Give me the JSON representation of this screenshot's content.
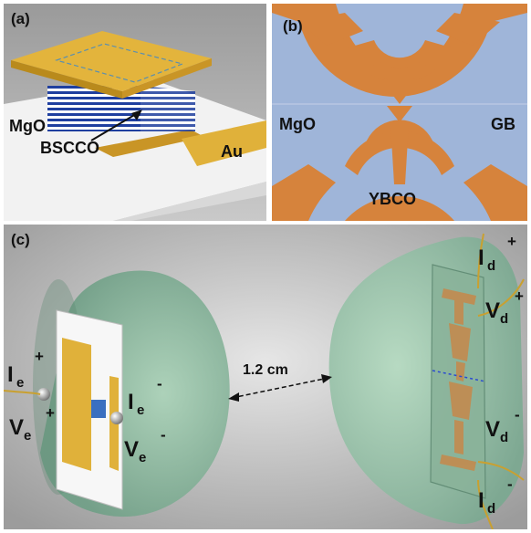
{
  "panel_a": {
    "tag": "(a)",
    "label_substrate": "MgO",
    "label_stack": "BSCCO",
    "label_electrode": "Au"
  },
  "panel_b": {
    "tag": "(b)",
    "label_substrate": "MgO",
    "label_boundary": "GB",
    "label_film": "YBCO"
  },
  "panel_c": {
    "tag": "(c)",
    "distance": "1.2 cm",
    "left_terminals": {
      "ie_plus": {
        "sym": "I",
        "sub": "e",
        "sup": "+"
      },
      "ve_plus": {
        "sym": "V",
        "sub": "e",
        "sup": "+"
      },
      "ie_minus": {
        "sym": "I",
        "sub": "e",
        "sup": "-"
      },
      "ve_minus": {
        "sym": "V",
        "sub": "e",
        "sup": "-"
      }
    },
    "right_terminals": {
      "id_plus": {
        "sym": "I",
        "sub": "d",
        "sup": "+"
      },
      "vd_plus": {
        "sym": "V",
        "sub": "d",
        "sup": "+"
      },
      "vd_minus": {
        "sym": "V",
        "sub": "d",
        "sup": "-"
      },
      "id_minus": {
        "sym": "I",
        "sub": "d",
        "sup": "-"
      }
    }
  },
  "colors": {
    "gold": "#e0b13a",
    "gold_dark": "#b98a1c",
    "bscco_blue": "#1f3f9f",
    "mgo_blue": "#9fb5d9",
    "ybco_orange": "#d6833c",
    "dome_green": "#8fbfa3",
    "background_grey": "#cfcfcf"
  }
}
